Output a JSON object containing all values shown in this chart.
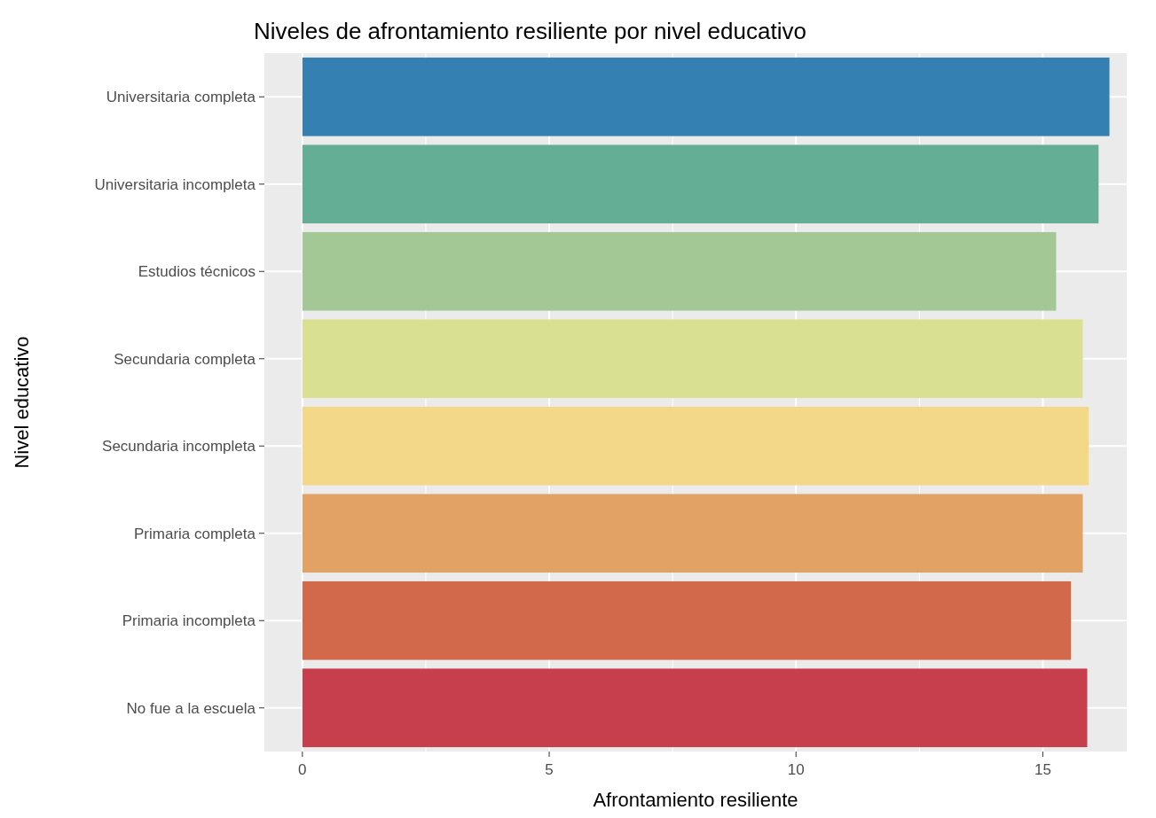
{
  "chart_data": {
    "type": "bar",
    "orientation": "horizontal",
    "title": "Niveles de afrontamiento resiliente por nivel educativo",
    "xlabel": "Afrontamiento resiliente",
    "ylabel": "Nivel educativo",
    "categories": [
      "Universitaria completa",
      "Universitaria incompleta",
      "Estudios técnicos",
      "Secundaria completa",
      "Secundaria incompleta",
      "Primaria completa",
      "Primaria incompleta",
      "No fue a la escuela"
    ],
    "values": [
      16.35,
      16.13,
      15.27,
      15.81,
      15.93,
      15.81,
      15.57,
      15.9
    ],
    "colors": [
      "#3480b2",
      "#63ae95",
      "#a4c796",
      "#d9e092",
      "#f4d889",
      "#e2a265",
      "#d1694a",
      "#c73e4c"
    ],
    "xlim": [
      -0.77,
      16.7
    ],
    "xticks": [
      0,
      5,
      10,
      15
    ],
    "grid": true
  }
}
